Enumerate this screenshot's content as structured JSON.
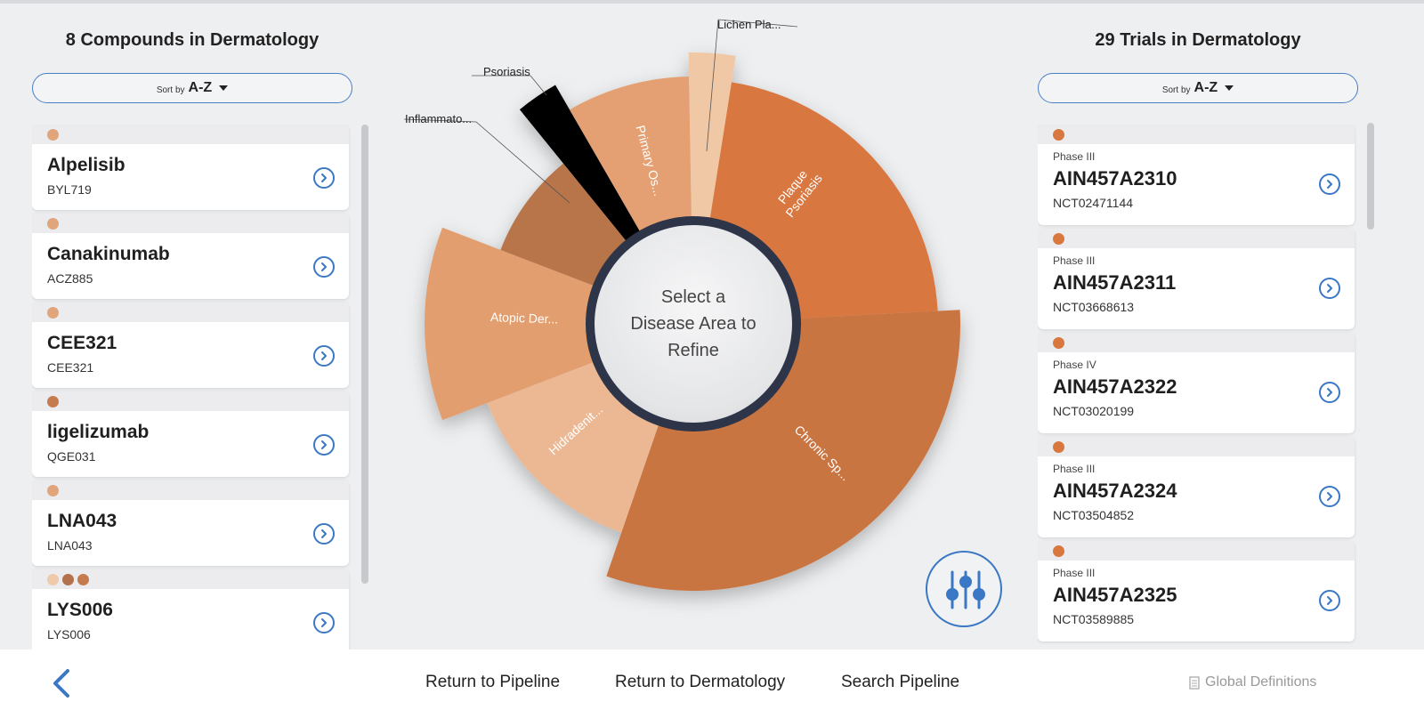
{
  "left_panel": {
    "title": "8 Compounds in Dermatology",
    "sort_label": "Sort by",
    "sort_value": "A-Z",
    "items": [
      {
        "name": "Alpelisib",
        "code": "BYL719",
        "dots": [
          "#e0a57b"
        ]
      },
      {
        "name": "Canakinumab",
        "code": "ACZ885",
        "dots": [
          "#e0a57b"
        ]
      },
      {
        "name": "CEE321",
        "code": "CEE321",
        "dots": [
          "#e0a57b"
        ]
      },
      {
        "name": "ligelizumab",
        "code": "QGE031",
        "dots": [
          "#c57b4e"
        ]
      },
      {
        "name": "LNA043",
        "code": "LNA043",
        "dots": [
          "#e0a57b"
        ]
      },
      {
        "name": "LYS006",
        "code": "LYS006",
        "dots": [
          "#eec9aa",
          "#b3714c",
          "#c57b4e"
        ]
      }
    ]
  },
  "right_panel": {
    "title": "29 Trials in Dermatology",
    "sort_label": "Sort by",
    "sort_value": "A-Z",
    "items": [
      {
        "phase": "Phase III",
        "id": "AIN457A2310",
        "nct": "NCT02471144",
        "dot": "#d9783e"
      },
      {
        "phase": "Phase III",
        "id": "AIN457A2311",
        "nct": "NCT03668613",
        "dot": "#d9783e"
      },
      {
        "phase": "Phase IV",
        "id": "AIN457A2322",
        "nct": "NCT03020199",
        "dot": "#d9783e"
      },
      {
        "phase": "Phase III",
        "id": "AIN457A2324",
        "nct": "NCT03504852",
        "dot": "#d9783e"
      },
      {
        "phase": "Phase III",
        "id": "AIN457A2325",
        "nct": "NCT03589885",
        "dot": "#d9783e"
      }
    ]
  },
  "chart": {
    "center_text": "Select a Disease Area to Refine",
    "segments": [
      {
        "label": "Plaque Psoriasis",
        "color": "#d8773f"
      },
      {
        "label": "Chronic Sp...",
        "color": "#c97442"
      },
      {
        "label": "Hidradenit...",
        "color": "#ecb893"
      },
      {
        "label": "Atopic Der...",
        "color": "#e29e6e"
      },
      {
        "label": "Inflammato...",
        "color": "#b7754a"
      },
      {
        "label": "Psoriasis",
        "color": "#000000"
      },
      {
        "label": "Primary Os...",
        "color": "#e4a072"
      },
      {
        "label": "Lichen Pla...",
        "color": "#f1c8a6"
      }
    ]
  },
  "bottom_nav": {
    "return_pipeline": "Return to Pipeline",
    "return_dermatology": "Return to Dermatology",
    "search_pipeline": "Search Pipeline",
    "global_definitions": "Global Definitions"
  },
  "colors": {
    "accent_blue": "#3a77c4"
  }
}
